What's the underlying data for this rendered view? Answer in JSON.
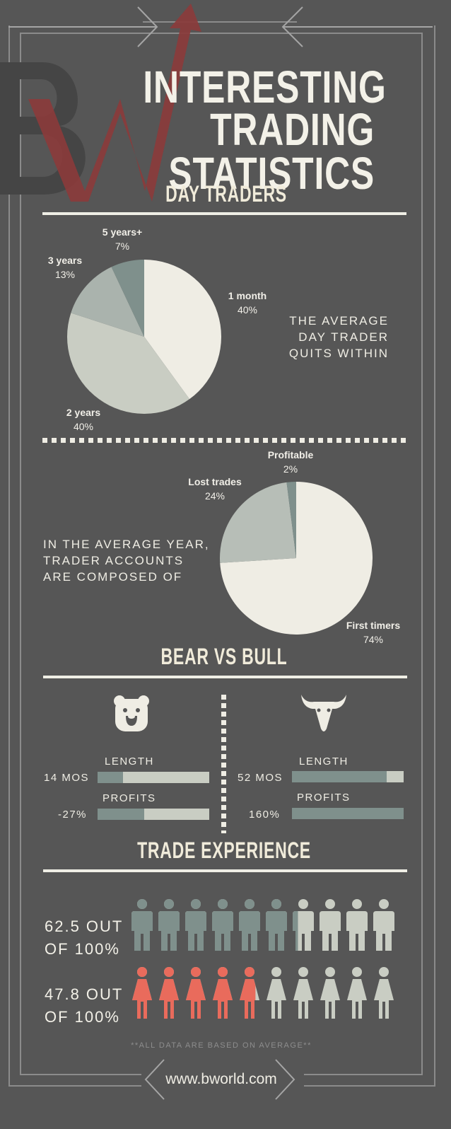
{
  "colors": {
    "background": "#565656",
    "cream": "#efede4",
    "teal": "#7f908c",
    "light_gray": "#c9cdc3",
    "coral": "#e96b5c",
    "brand_red": "#8b3a3a"
  },
  "brand": {
    "logo_letters": "BW"
  },
  "header": {
    "title_line1": "INTERESTING",
    "title_line2": "TRADING STATISTICS"
  },
  "day_traders": {
    "title": "DAY TRADERS",
    "quit_text": [
      "THE AVERAGE",
      "DAY TRADER",
      "QUITS WITHIN"
    ],
    "chart_data": {
      "type": "pie",
      "slices": [
        {
          "label": "1 month",
          "value": 40,
          "display": "40%",
          "color": "#efede4"
        },
        {
          "label": "2 years",
          "value": 40,
          "display": "40%",
          "color": "#c9cdc3"
        },
        {
          "label": "3 years",
          "value": 13,
          "display": "13%",
          "color": "#aab3ad"
        },
        {
          "label": "5 years+",
          "value": 7,
          "display": "7%",
          "color": "#7f908c"
        }
      ]
    }
  },
  "accounts": {
    "text": [
      "IN THE AVERAGE YEAR,",
      "TRADER ACCOUNTS",
      "ARE COMPOSED OF"
    ],
    "chart_data": {
      "type": "pie",
      "slices": [
        {
          "label": "First timers",
          "value": 74,
          "display": "74%",
          "color": "#efede4"
        },
        {
          "label": "Lost trades",
          "value": 24,
          "display": "24%",
          "color": "#b7beb7"
        },
        {
          "label": "Profitable",
          "value": 2,
          "display": "2%",
          "color": "#7f908c"
        }
      ]
    }
  },
  "bear_bull": {
    "title": "BEAR VS BULL",
    "bear": {
      "length_label": "LENGTH",
      "length_value": "14 MOS",
      "length_fraction": 0.23,
      "profits_label": "PROFITS",
      "profits_value": "-27%",
      "profits_fraction": 0.42,
      "icon": "bear-face-icon"
    },
    "bull": {
      "length_label": "LENGTH",
      "length_value": "52 MOS",
      "length_fraction": 0.85,
      "profits_label": "PROFITS",
      "profits_value": "160%",
      "profits_fraction": 1.0,
      "icon": "bull-head-icon"
    }
  },
  "experience": {
    "title": "TRADE EXPERIENCE",
    "men": {
      "line1": "62.5 OUT",
      "line2": "OF 100%",
      "value": 62.5,
      "icon": "man-icon"
    },
    "women": {
      "line1": "47.8 OUT",
      "line2": "OF 100%",
      "value": 47.8,
      "icon": "woman-icon"
    }
  },
  "footer": {
    "note": "**ALL DATA ARE BASED ON AVERAGE**",
    "url": "www.bworld.com"
  }
}
